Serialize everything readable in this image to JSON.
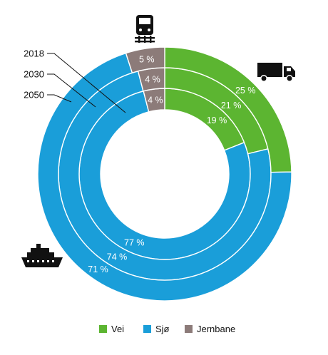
{
  "chart_data": {
    "type": "pie",
    "subtype": "multi-ring donut",
    "title": "",
    "categories": [
      "Vei",
      "Sjø",
      "Jernbane"
    ],
    "colors": [
      "#5cb531",
      "#1a9ed9",
      "#8c7b79"
    ],
    "rings": [
      {
        "year": "2018",
        "values": [
          19,
          77,
          4
        ],
        "labels": [
          "19 %",
          "77 %",
          "4 %"
        ]
      },
      {
        "year": "2030",
        "values": [
          21,
          74,
          4
        ],
        "labels": [
          "21 %",
          "74 %",
          "4 %"
        ]
      },
      {
        "year": "2050",
        "values": [
          25,
          71,
          5
        ],
        "labels": [
          "25 %",
          "71 %",
          "5 %"
        ]
      }
    ],
    "legend": {
      "position": "bottom",
      "items": [
        {
          "label": "Vei",
          "color": "#5cb531"
        },
        {
          "label": "Sjø",
          "color": "#1a9ed9"
        },
        {
          "label": "Jernbane",
          "color": "#8c7b79"
        }
      ]
    }
  },
  "icons": {
    "road": "truck-icon",
    "sea": "ship-icon",
    "rail": "train-icon"
  }
}
